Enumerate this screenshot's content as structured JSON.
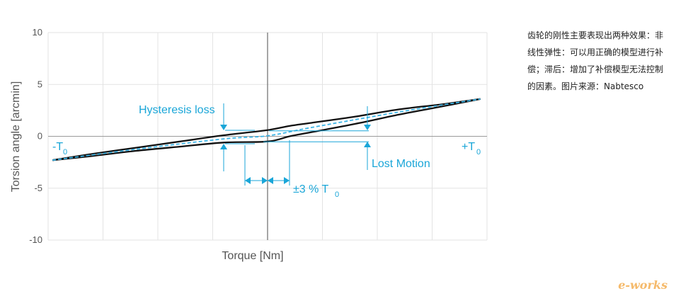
{
  "chart_data": {
    "type": "line",
    "xlabel": "Torque [Nm]",
    "ylabel": "Torsion angle [arcmin]",
    "xlim": [
      -100,
      100
    ],
    "ylim": [
      -10,
      10
    ],
    "yticks": [
      "10",
      "5",
      "0",
      "-5",
      "-10"
    ],
    "grid": true,
    "series": [
      {
        "values": [
          [
            -98,
            -2.3
          ],
          [
            -80,
            -1.7
          ],
          [
            -60,
            -1.1
          ],
          [
            -40,
            -0.5
          ],
          [
            -20,
            0.1
          ],
          [
            0,
            0.6
          ],
          [
            10,
            1.0
          ],
          [
            20,
            1.3
          ],
          [
            40,
            1.9
          ],
          [
            60,
            2.6
          ],
          [
            80,
            3.1
          ],
          [
            97,
            3.6
          ]
        ]
      },
      {
        "values": [
          [
            -98,
            -2.3
          ],
          [
            -80,
            -1.9
          ],
          [
            -60,
            -1.4
          ],
          [
            -40,
            -1.0
          ],
          [
            -20,
            -0.6
          ],
          [
            0,
            -0.5
          ],
          [
            10,
            0.0
          ],
          [
            20,
            0.4
          ],
          [
            40,
            1.2
          ],
          [
            60,
            2.1
          ],
          [
            80,
            2.9
          ],
          [
            97,
            3.6
          ]
        ]
      },
      {
        "values": [
          [
            -98,
            -2.3
          ],
          [
            -60,
            -1.25
          ],
          [
            -20,
            -0.25
          ],
          [
            0,
            0.05
          ],
          [
            20,
            0.85
          ],
          [
            60,
            2.35
          ],
          [
            97,
            3.6
          ]
        ]
      }
    ],
    "annotations": {
      "hysteresis": "Hysteresis loss",
      "lost_motion": "Lost Motion",
      "neg_t0_main": "-T",
      "neg_t0_sub": "0",
      "pos_t0_main": "+T",
      "pos_t0_sub": "0",
      "pct_main": "±3 % T",
      "pct_sub": "0"
    }
  },
  "caption": "齿轮的刚性主要表现出两种效果：非线性弹性：可以用正确的模型进行补偿；滞后：增加了补偿模型无法控制的因素。图片来源：Nabtesco",
  "watermark": "e-works",
  "colors": {
    "curve": "#111111",
    "dashed": "#3cb4e6",
    "accent": "#1aa6d8",
    "grid": "#e3e3e3",
    "axis": "#555555"
  }
}
